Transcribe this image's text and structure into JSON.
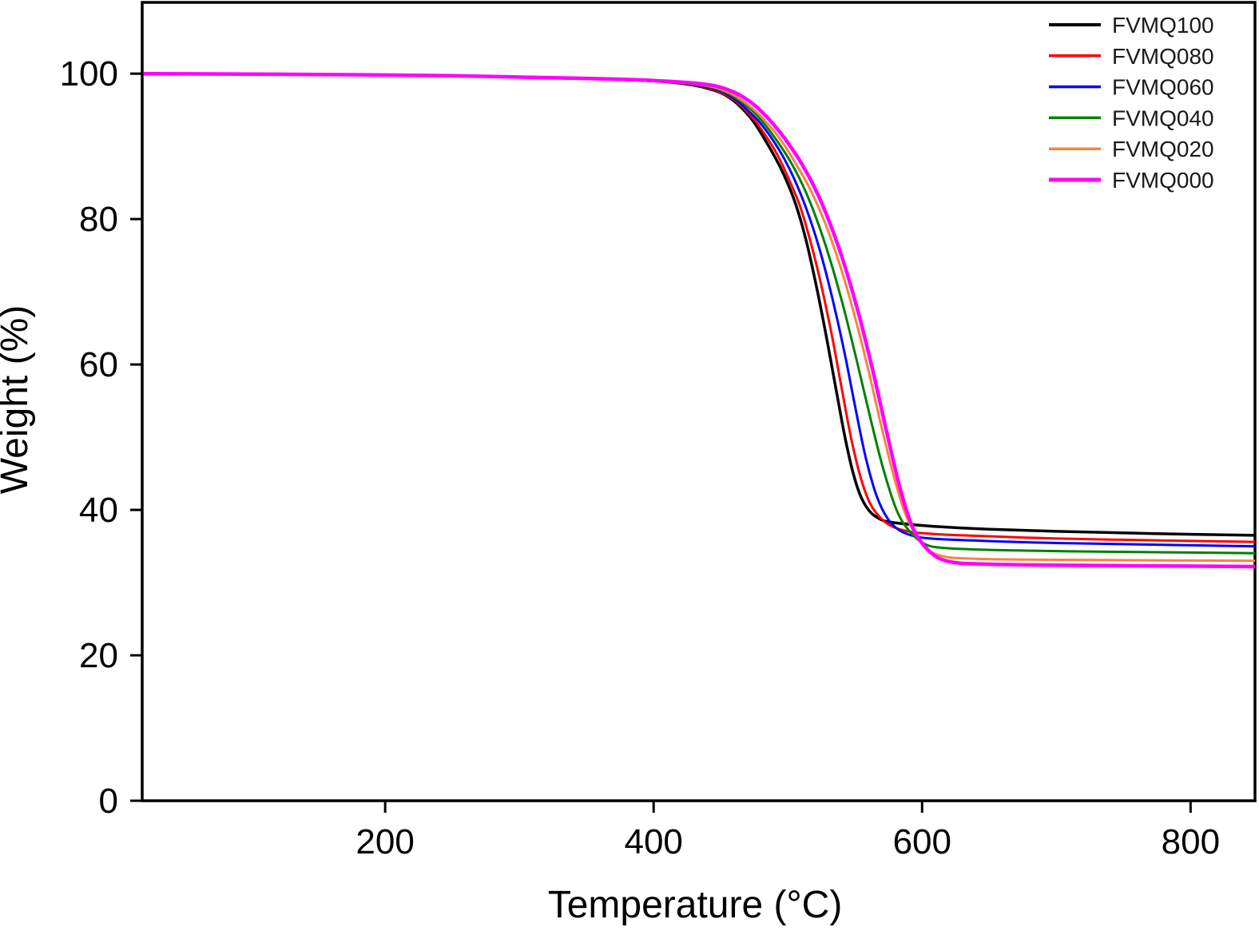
{
  "chart_data": {
    "type": "line",
    "title": "",
    "xlabel": "Temperature (°C)",
    "ylabel": "Weight (%)",
    "xlim": [
      19,
      848
    ],
    "ylim": [
      0,
      109.8
    ],
    "x_ticks": [
      200,
      400,
      600,
      800
    ],
    "y_ticks": [
      100,
      80,
      60,
      40,
      20,
      0
    ],
    "grid": false,
    "legend_position": "top-right",
    "axis_color": "#000000",
    "background_color": "#ffffff",
    "series": [
      {
        "name": "FVMQ100",
        "color": "#000000",
        "width": 3.5,
        "points": [
          [
            20,
            100
          ],
          [
            120,
            99.9
          ],
          [
            250,
            99.7
          ],
          [
            350,
            99.3
          ],
          [
            400,
            99.0
          ],
          [
            430,
            98.4
          ],
          [
            448,
            97.5
          ],
          [
            458,
            96.5
          ],
          [
            466,
            95.2
          ],
          [
            474,
            93.5
          ],
          [
            481,
            91.5
          ],
          [
            488,
            89.3
          ],
          [
            496,
            86.5
          ],
          [
            505,
            82.5
          ],
          [
            513,
            77.5
          ],
          [
            521,
            71.0
          ],
          [
            529,
            63.5
          ],
          [
            536,
            56.5
          ],
          [
            542,
            50.5
          ],
          [
            548,
            45.5
          ],
          [
            554,
            42.0
          ],
          [
            561,
            39.8
          ],
          [
            569,
            38.7
          ],
          [
            577,
            38.3
          ],
          [
            592,
            38.0
          ],
          [
            612,
            37.7
          ],
          [
            650,
            37.35
          ],
          [
            700,
            37.05
          ],
          [
            770,
            36.75
          ],
          [
            848,
            36.5
          ]
        ]
      },
      {
        "name": "FVMQ080",
        "color": "#ff0000",
        "width": 3,
        "points": [
          [
            20,
            100
          ],
          [
            120,
            99.9
          ],
          [
            250,
            99.7
          ],
          [
            350,
            99.3
          ],
          [
            400,
            99.0
          ],
          [
            432,
            98.4
          ],
          [
            450,
            97.4
          ],
          [
            460,
            96.4
          ],
          [
            468,
            95.1
          ],
          [
            476,
            93.4
          ],
          [
            484,
            91.3
          ],
          [
            492,
            88.9
          ],
          [
            500,
            85.8
          ],
          [
            509,
            81.8
          ],
          [
            517,
            76.8
          ],
          [
            525,
            70.8
          ],
          [
            533,
            63.8
          ],
          [
            540,
            56.8
          ],
          [
            547,
            50.0
          ],
          [
            554,
            44.6
          ],
          [
            561,
            41.0
          ],
          [
            569,
            38.9
          ],
          [
            578,
            37.7
          ],
          [
            591,
            37.0
          ],
          [
            608,
            36.7
          ],
          [
            630,
            36.5
          ],
          [
            675,
            36.2
          ],
          [
            730,
            35.95
          ],
          [
            848,
            35.6
          ]
        ]
      },
      {
        "name": "FVMQ060",
        "color": "#0000ff",
        "width": 3,
        "points": [
          [
            20,
            100
          ],
          [
            120,
            99.9
          ],
          [
            250,
            99.7
          ],
          [
            350,
            99.3
          ],
          [
            400,
            99.0
          ],
          [
            434,
            98.4
          ],
          [
            452,
            97.4
          ],
          [
            462,
            96.3
          ],
          [
            470,
            95.0
          ],
          [
            479,
            93.3
          ],
          [
            488,
            91.1
          ],
          [
            497,
            88.4
          ],
          [
            506,
            85.0
          ],
          [
            515,
            80.8
          ],
          [
            524,
            75.6
          ],
          [
            533,
            69.2
          ],
          [
            542,
            61.8
          ],
          [
            550,
            54.3
          ],
          [
            558,
            47.2
          ],
          [
            566,
            42.0
          ],
          [
            574,
            38.9
          ],
          [
            583,
            37.2
          ],
          [
            596,
            36.3
          ],
          [
            612,
            36.0
          ],
          [
            645,
            35.75
          ],
          [
            700,
            35.45
          ],
          [
            848,
            35.0
          ]
        ]
      },
      {
        "name": "FVMQ040",
        "color": "#008000",
        "width": 3,
        "points": [
          [
            20,
            100
          ],
          [
            120,
            99.9
          ],
          [
            250,
            99.7
          ],
          [
            350,
            99.3
          ],
          [
            400,
            99.0
          ],
          [
            436,
            98.4
          ],
          [
            454,
            97.4
          ],
          [
            464,
            96.3
          ],
          [
            473,
            95.0
          ],
          [
            482,
            93.2
          ],
          [
            491,
            91.0
          ],
          [
            501,
            88.2
          ],
          [
            511,
            84.7
          ],
          [
            521,
            80.2
          ],
          [
            531,
            74.7
          ],
          [
            541,
            68.2
          ],
          [
            551,
            60.8
          ],
          [
            561,
            53.0
          ],
          [
            571,
            45.7
          ],
          [
            581,
            40.0
          ],
          [
            590,
            37.2
          ],
          [
            602,
            35.3
          ],
          [
            617,
            34.75
          ],
          [
            650,
            34.5
          ],
          [
            710,
            34.3
          ],
          [
            848,
            34.05
          ]
        ]
      },
      {
        "name": "FVMQ020",
        "color": "#ff8040",
        "width": 3,
        "points": [
          [
            20,
            100
          ],
          [
            120,
            99.9
          ],
          [
            250,
            99.7
          ],
          [
            350,
            99.3
          ],
          [
            400,
            99.0
          ],
          [
            438,
            98.4
          ],
          [
            456,
            97.4
          ],
          [
            466,
            96.3
          ],
          [
            475,
            95.0
          ],
          [
            485,
            93.1
          ],
          [
            495,
            90.8
          ],
          [
            505,
            87.9
          ],
          [
            516,
            84.3
          ],
          [
            527,
            79.8
          ],
          [
            538,
            74.1
          ],
          [
            549,
            67.2
          ],
          [
            560,
            59.2
          ],
          [
            570,
            51.2
          ],
          [
            580,
            43.9
          ],
          [
            589,
            38.8
          ],
          [
            601,
            35.1
          ],
          [
            614,
            33.7
          ],
          [
            636,
            33.3
          ],
          [
            690,
            33.15
          ],
          [
            848,
            33.0
          ]
        ]
      },
      {
        "name": "FVMQ000",
        "color": "#ff00ff",
        "width": 4.5,
        "points": [
          [
            20,
            100
          ],
          [
            120,
            99.92
          ],
          [
            250,
            99.72
          ],
          [
            350,
            99.35
          ],
          [
            400,
            99.05
          ],
          [
            440,
            98.5
          ],
          [
            458,
            97.6
          ],
          [
            469,
            96.5
          ],
          [
            478,
            95.2
          ],
          [
            488,
            93.3
          ],
          [
            498,
            91.0
          ],
          [
            509,
            88.0
          ],
          [
            520,
            84.3
          ],
          [
            531,
            79.6
          ],
          [
            542,
            73.8
          ],
          [
            553,
            66.8
          ],
          [
            564,
            58.6
          ],
          [
            574,
            50.4
          ],
          [
            584,
            42.7
          ],
          [
            594,
            37.2
          ],
          [
            606,
            34.2
          ],
          [
            620,
            32.9
          ],
          [
            645,
            32.55
          ],
          [
            700,
            32.4
          ],
          [
            848,
            32.2
          ]
        ]
      }
    ]
  }
}
